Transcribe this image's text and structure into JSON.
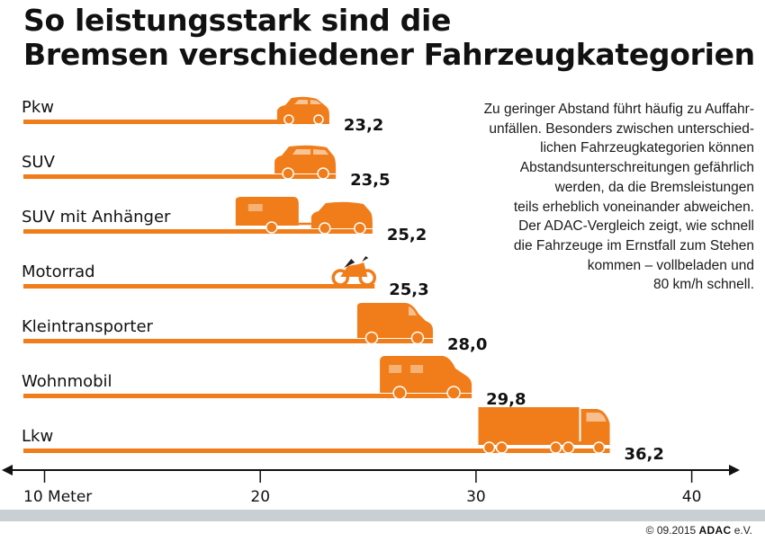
{
  "title_lines": [
    "So leistungsstark sind die",
    "Bremsen verschiedener Fahrzeugkategorien"
  ],
  "description_lines": [
    "Zu geringer Abstand führt häufig zu Auffahr-",
    "unfällen. Besonders zwischen unterschied-",
    "lichen Fahrzeugkategorien können",
    "Abstandsunterschreitungen gefährlich",
    "werden, da die Bremsleistungen",
    "teils erheblich voneinander abweichen.",
    "Der ADAC-Vergleich zeigt, wie schnell",
    "die Fahrzeuge im Ernstfall zum Stehen",
    "kommen – vollbeladen und",
    "80 km/h schnell."
  ],
  "colors": {
    "bar": "#f07d1a",
    "text": "#111111",
    "axis": "#111111",
    "band": "#c9d0d4"
  },
  "chart_data": {
    "type": "bar",
    "orientation": "horizontal",
    "categories": [
      "Pkw",
      "SUV",
      "SUV mit Anhänger",
      "Motorrad",
      "Kleintransporter",
      "Wohnmobil",
      "Lkw"
    ],
    "values": [
      23.2,
      23.5,
      25.2,
      25.3,
      28.0,
      29.8,
      36.2
    ],
    "value_labels": [
      "23,2",
      "23,5",
      "25,2",
      "25,3",
      "28,0",
      "29,8",
      "36,2"
    ],
    "icons": [
      "car-icon",
      "suv-icon",
      "suv-trailer-icon",
      "motorcycle-icon",
      "van-icon",
      "motorhome-icon",
      "truck-icon"
    ],
    "xticks": [
      10,
      20,
      30,
      40
    ],
    "xtick_labels": [
      "10 Meter",
      "20",
      "30",
      "40"
    ],
    "xlim": [
      8,
      43
    ],
    "grid": false,
    "legend": "none"
  },
  "footer": {
    "copyright": "© 09.2015",
    "brand": "ADAC",
    "suffix": " e.V."
  }
}
